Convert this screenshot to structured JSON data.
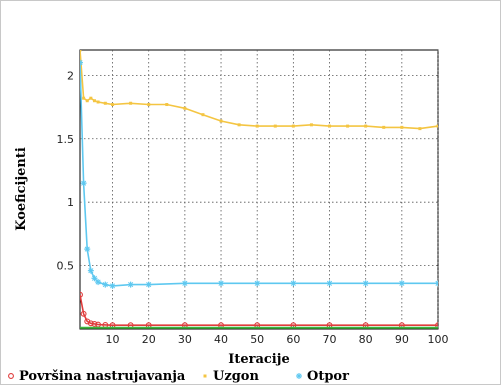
{
  "chart_data": {
    "type": "line",
    "title": "",
    "xlabel": "Iteracije",
    "ylabel": "Koeficijenti",
    "xlim": [
      1,
      100
    ],
    "ylim": [
      0,
      2.2
    ],
    "x_ticks": [
      10,
      20,
      30,
      40,
      50,
      60,
      70,
      80,
      90,
      100
    ],
    "y_ticks": [
      0.5,
      1,
      1.5,
      2
    ],
    "y_tick_labels": [
      "0.5",
      "1",
      "1.5",
      "2"
    ],
    "grid": true,
    "legend_position": "bottom",
    "series": [
      {
        "name": "Površina nastrujavanja",
        "color": "#e03c3c",
        "marker": "circle",
        "x": [
          1,
          2,
          3,
          4,
          5,
          6,
          8,
          10,
          15,
          20,
          30,
          40,
          50,
          60,
          70,
          80,
          90,
          100
        ],
        "y": [
          0.27,
          0.12,
          0.06,
          0.045,
          0.04,
          0.035,
          0.032,
          0.03,
          0.03,
          0.03,
          0.03,
          0.03,
          0.03,
          0.03,
          0.03,
          0.03,
          0.03,
          0.03
        ]
      },
      {
        "name": "Uzgon",
        "color": "#f4c542",
        "marker": "dot",
        "x": [
          1,
          2,
          3,
          4,
          5,
          6,
          8,
          10,
          15,
          20,
          25,
          30,
          35,
          40,
          45,
          50,
          55,
          60,
          65,
          70,
          75,
          80,
          85,
          90,
          95,
          100
        ],
        "y": [
          2.2,
          1.82,
          1.8,
          1.82,
          1.8,
          1.79,
          1.78,
          1.77,
          1.78,
          1.77,
          1.77,
          1.74,
          1.69,
          1.64,
          1.61,
          1.6,
          1.6,
          1.6,
          1.61,
          1.6,
          1.6,
          1.6,
          1.59,
          1.59,
          1.58,
          1.6
        ]
      },
      {
        "name": "Otpor",
        "color": "#5ec8f0",
        "marker": "asterisk",
        "x": [
          1,
          2,
          3,
          4,
          5,
          6,
          8,
          10,
          15,
          20,
          30,
          40,
          50,
          60,
          70,
          80,
          90,
          100
        ],
        "y": [
          2.1,
          1.15,
          0.63,
          0.46,
          0.4,
          0.37,
          0.35,
          0.34,
          0.35,
          0.35,
          0.36,
          0.36,
          0.36,
          0.36,
          0.36,
          0.36,
          0.36,
          0.36
        ]
      },
      {
        "name": "",
        "color": "#3cb43c",
        "marker": "none",
        "x": [
          1,
          100
        ],
        "y": [
          0.01,
          0.01
        ]
      }
    ]
  }
}
